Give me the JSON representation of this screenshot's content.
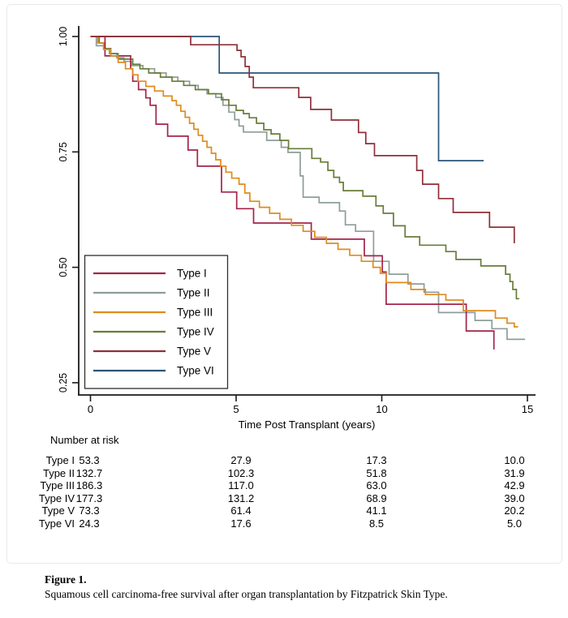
{
  "figure": {
    "caption": {
      "label": "Figure 1.",
      "text": "Squamous cell carcinoma-free survival after organ transplantation by Fitzpatrick Skin Type."
    }
  },
  "at_risk": {
    "heading": "Number at risk",
    "time_points": [
      0,
      5,
      10,
      15
    ],
    "rows": [
      {
        "label": "Type I",
        "values": [
          "53.3",
          "27.9",
          "17.3",
          "10.0"
        ]
      },
      {
        "label": "Type II",
        "values": [
          "132.7",
          "102.3",
          "51.8",
          "31.9"
        ]
      },
      {
        "label": "Type III",
        "values": [
          "186.3",
          "117.0",
          "63.0",
          "42.9"
        ]
      },
      {
        "label": "Type IV",
        "values": [
          "177.3",
          "131.2",
          "68.9",
          "39.0"
        ]
      },
      {
        "label": "Type V",
        "values": [
          "73.3",
          "61.4",
          "41.1",
          "20.2"
        ]
      },
      {
        "label": "Type VI",
        "values": [
          "24.3",
          "17.6",
          "8.5",
          "5.0"
        ]
      }
    ]
  },
  "chart_data": {
    "type": "line",
    "subtype": "kaplan-meier-step",
    "title": "",
    "xlabel": "Time Post Transplant (years)",
    "ylabel": "",
    "xlim": [
      0,
      15.4
    ],
    "ylim": [
      0.22,
      1.02
    ],
    "x_ticks": [
      0,
      5,
      10,
      15
    ],
    "y_ticks": [
      1.0,
      0.75,
      0.5,
      0.25
    ],
    "y_tick_labels": [
      "1.00",
      "0.75",
      "0.50",
      "0.25"
    ],
    "grid": false,
    "legend_position": "inside-lower-left",
    "axis_color": "#1a1a1a",
    "series": [
      {
        "name": "Type I",
        "color": "#A42449",
        "end_x": 13.85,
        "points": [
          [
            0,
            1.0
          ],
          [
            0.5,
            0.958
          ],
          [
            1.38,
            0.93
          ],
          [
            1.45,
            0.903
          ],
          [
            1.65,
            0.885
          ],
          [
            1.9,
            0.867
          ],
          [
            2.05,
            0.851
          ],
          [
            2.25,
            0.81
          ],
          [
            2.65,
            0.784
          ],
          [
            3.35,
            0.754
          ],
          [
            3.67,
            0.719
          ],
          [
            4.5,
            0.663
          ],
          [
            5.02,
            0.627
          ],
          [
            5.6,
            0.596
          ],
          [
            7.58,
            0.561
          ],
          [
            9.4,
            0.525
          ],
          [
            10.02,
            0.49
          ],
          [
            10.15,
            0.42
          ],
          [
            12.9,
            0.362
          ],
          [
            13.85,
            0.322
          ]
        ]
      },
      {
        "name": "Type II",
        "color": "#8E9E99",
        "end_x": 14.92,
        "points": [
          [
            0,
            1.0
          ],
          [
            0.2,
            0.98
          ],
          [
            0.45,
            0.972
          ],
          [
            0.65,
            0.963
          ],
          [
            0.9,
            0.954
          ],
          [
            1.15,
            0.946
          ],
          [
            1.4,
            0.937
          ],
          [
            1.8,
            0.93
          ],
          [
            2.2,
            0.921
          ],
          [
            2.6,
            0.912
          ],
          [
            3.0,
            0.903
          ],
          [
            3.4,
            0.894
          ],
          [
            3.7,
            0.885
          ],
          [
            4.0,
            0.876
          ],
          [
            4.3,
            0.868
          ],
          [
            4.55,
            0.851
          ],
          [
            4.75,
            0.836
          ],
          [
            4.95,
            0.82
          ],
          [
            5.1,
            0.806
          ],
          [
            5.25,
            0.793
          ],
          [
            6.05,
            0.775
          ],
          [
            6.55,
            0.76
          ],
          [
            6.78,
            0.749
          ],
          [
            7.2,
            0.698
          ],
          [
            7.3,
            0.652
          ],
          [
            7.85,
            0.64
          ],
          [
            8.55,
            0.622
          ],
          [
            8.75,
            0.592
          ],
          [
            9.1,
            0.578
          ],
          [
            9.72,
            0.513
          ],
          [
            10.25,
            0.485
          ],
          [
            10.9,
            0.464
          ],
          [
            11.45,
            0.446
          ],
          [
            11.95,
            0.402
          ],
          [
            13.2,
            0.385
          ],
          [
            13.78,
            0.367
          ],
          [
            14.3,
            0.344
          ]
        ]
      },
      {
        "name": "Type III",
        "color": "#DF8B1E",
        "end_x": 14.68,
        "points": [
          [
            0,
            1.0
          ],
          [
            0.25,
            0.986
          ],
          [
            0.45,
            0.972
          ],
          [
            0.7,
            0.958
          ],
          [
            0.95,
            0.944
          ],
          [
            1.2,
            0.93
          ],
          [
            1.45,
            0.917
          ],
          [
            1.63,
            0.903
          ],
          [
            1.9,
            0.892
          ],
          [
            2.2,
            0.882
          ],
          [
            2.5,
            0.871
          ],
          [
            2.8,
            0.861
          ],
          [
            2.95,
            0.851
          ],
          [
            3.1,
            0.838
          ],
          [
            3.25,
            0.825
          ],
          [
            3.4,
            0.812
          ],
          [
            3.55,
            0.799
          ],
          [
            3.7,
            0.786
          ],
          [
            3.85,
            0.773
          ],
          [
            4.0,
            0.76
          ],
          [
            4.15,
            0.747
          ],
          [
            4.3,
            0.733
          ],
          [
            4.47,
            0.719
          ],
          [
            4.65,
            0.706
          ],
          [
            4.85,
            0.693
          ],
          [
            5.1,
            0.68
          ],
          [
            5.3,
            0.661
          ],
          [
            5.47,
            0.643
          ],
          [
            5.8,
            0.63
          ],
          [
            6.15,
            0.617
          ],
          [
            6.5,
            0.604
          ],
          [
            6.9,
            0.591
          ],
          [
            7.3,
            0.578
          ],
          [
            7.7,
            0.565
          ],
          [
            8.1,
            0.552
          ],
          [
            8.5,
            0.539
          ],
          [
            8.9,
            0.526
          ],
          [
            9.3,
            0.513
          ],
          [
            9.7,
            0.5
          ],
          [
            9.95,
            0.487
          ],
          [
            10.15,
            0.467
          ],
          [
            11.0,
            0.452
          ],
          [
            11.5,
            0.441
          ],
          [
            12.2,
            0.429
          ],
          [
            12.8,
            0.406
          ],
          [
            13.9,
            0.39
          ],
          [
            14.3,
            0.379
          ],
          [
            14.55,
            0.371
          ]
        ]
      },
      {
        "name": "Type IV",
        "color": "#697C3B",
        "end_x": 14.72,
        "points": [
          [
            0,
            1.0
          ],
          [
            0.3,
            0.986
          ],
          [
            0.5,
            0.974
          ],
          [
            0.7,
            0.963
          ],
          [
            0.95,
            0.951
          ],
          [
            1.45,
            0.94
          ],
          [
            1.7,
            0.93
          ],
          [
            2.0,
            0.921
          ],
          [
            2.4,
            0.912
          ],
          [
            2.8,
            0.903
          ],
          [
            3.2,
            0.894
          ],
          [
            3.6,
            0.885
          ],
          [
            4.05,
            0.876
          ],
          [
            4.5,
            0.863
          ],
          [
            4.75,
            0.851
          ],
          [
            5.0,
            0.84
          ],
          [
            5.25,
            0.833
          ],
          [
            5.45,
            0.824
          ],
          [
            5.7,
            0.812
          ],
          [
            5.95,
            0.798
          ],
          [
            6.2,
            0.789
          ],
          [
            6.5,
            0.775
          ],
          [
            6.8,
            0.757
          ],
          [
            7.6,
            0.736
          ],
          [
            7.9,
            0.728
          ],
          [
            8.15,
            0.71
          ],
          [
            8.35,
            0.695
          ],
          [
            8.55,
            0.684
          ],
          [
            8.68,
            0.666
          ],
          [
            9.35,
            0.654
          ],
          [
            9.8,
            0.633
          ],
          [
            10.05,
            0.617
          ],
          [
            10.4,
            0.59
          ],
          [
            10.8,
            0.566
          ],
          [
            11.3,
            0.548
          ],
          [
            12.2,
            0.534
          ],
          [
            12.55,
            0.517
          ],
          [
            13.4,
            0.503
          ],
          [
            14.25,
            0.485
          ],
          [
            14.4,
            0.469
          ],
          [
            14.5,
            0.452
          ],
          [
            14.62,
            0.432
          ]
        ]
      },
      {
        "name": "Type V",
        "color": "#8E3039",
        "end_x": 14.55,
        "points": [
          [
            0,
            1.0
          ],
          [
            3.44,
            0.982
          ],
          [
            5.03,
            0.97
          ],
          [
            5.17,
            0.956
          ],
          [
            5.31,
            0.935
          ],
          [
            5.45,
            0.912
          ],
          [
            5.59,
            0.889
          ],
          [
            7.15,
            0.868
          ],
          [
            7.56,
            0.842
          ],
          [
            8.27,
            0.819
          ],
          [
            9.2,
            0.792
          ],
          [
            9.45,
            0.768
          ],
          [
            9.75,
            0.742
          ],
          [
            11.2,
            0.71
          ],
          [
            11.4,
            0.68
          ],
          [
            11.95,
            0.649
          ],
          [
            12.45,
            0.619
          ],
          [
            13.7,
            0.587
          ],
          [
            14.55,
            0.552
          ]
        ]
      },
      {
        "name": "Type VI",
        "color": "#2A5578",
        "end_x": 13.5,
        "points": [
          [
            0,
            1.0
          ],
          [
            4.42,
            0.921
          ],
          [
            11.95,
            0.731
          ]
        ]
      }
    ]
  }
}
